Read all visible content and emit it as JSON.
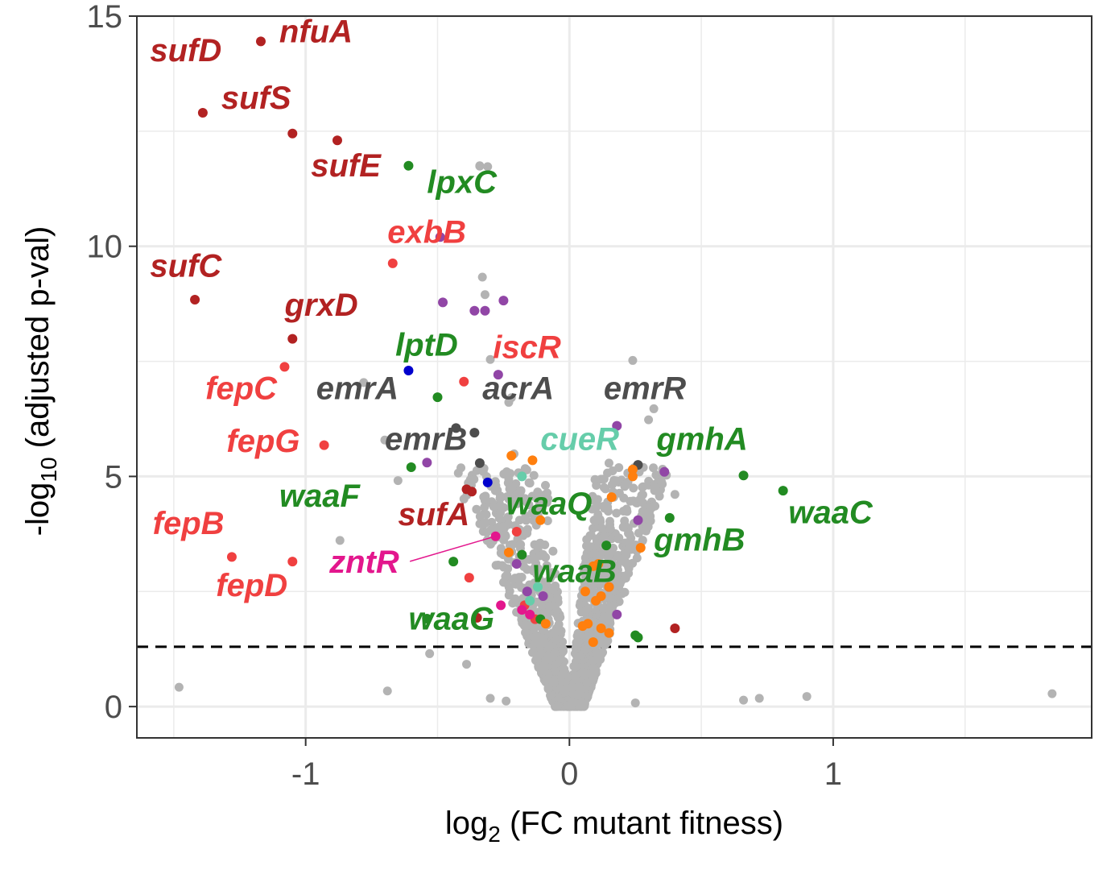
{
  "chart_data": {
    "type": "scatter",
    "title": "",
    "xlabel": {
      "base": "log",
      "sub": "2",
      "rest": " (FC mutant fitness)"
    },
    "ylabel": {
      "prefix": "-log",
      "sub": "10",
      "rest": " (adjusted p-val)"
    },
    "xlim": [
      -1.64,
      1.98
    ],
    "ylim": [
      -0.68,
      15.0
    ],
    "xticks": [
      {
        "value": -1,
        "label": "-1"
      },
      {
        "value": 0,
        "label": "0"
      },
      {
        "value": 1,
        "label": "1"
      }
    ],
    "yticks": [
      {
        "value": 0,
        "label": "0"
      },
      {
        "value": 5,
        "label": "5"
      },
      {
        "value": 10,
        "label": "10"
      },
      {
        "value": 15,
        "label": "15"
      }
    ],
    "grid": true,
    "threshold": {
      "y": 1.3,
      "style": "dashed"
    },
    "colors": {
      "background_gray": "#b3b3b3",
      "dark_red": "#b22222",
      "red": "#f04040",
      "green": "#228b22",
      "purple": "#9146a6",
      "dark_gray": "#4d4d4d",
      "orange": "#ff7f0e",
      "teal": "#66cdaa",
      "blue": "#0000cd",
      "magenta": "#e3178d"
    },
    "background_points": [
      [
        -1.48,
        0.42
      ],
      [
        -0.69,
        0.34
      ],
      [
        -0.24,
        0.12
      ],
      [
        -0.3,
        0.18
      ],
      [
        0.25,
        0.08
      ],
      [
        0.66,
        0.14
      ],
      [
        0.72,
        0.18
      ],
      [
        0.9,
        0.22
      ],
      [
        1.83,
        0.28
      ],
      [
        -0.87,
        3.61
      ],
      [
        -0.65,
        4.91
      ],
      [
        -0.7,
        5.79
      ],
      [
        -0.78,
        7.04
      ],
      [
        -0.31,
        11.73
      ],
      [
        -0.34,
        11.74
      ],
      [
        -0.34,
        11.75
      ],
      [
        -0.33,
        9.33
      ],
      [
        -0.32,
        8.95
      ],
      [
        -0.3,
        7.54
      ],
      [
        -0.23,
        6.61
      ],
      [
        -0.22,
        6.71
      ],
      [
        -0.21,
        5.49
      ],
      [
        -0.23,
        4.51
      ],
      [
        -0.4,
        4.51
      ],
      [
        -0.53,
        1.15
      ],
      [
        -0.39,
        0.92
      ],
      [
        0.24,
        7.52
      ],
      [
        0.3,
        6.23
      ],
      [
        0.32,
        6.47
      ],
      [
        0.4,
        4.61
      ],
      [
        0.15,
        5.29
      ],
      [
        0.12,
        4.94
      ],
      [
        0.28,
        4.42
      ]
    ],
    "series": [
      {
        "name": "",
        "color": "#b22222",
        "points": [
          [
            -1.17,
            14.45
          ],
          [
            -1.39,
            12.9
          ],
          [
            -1.05,
            12.45
          ],
          [
            -0.88,
            12.3
          ],
          [
            -1.42,
            8.84
          ],
          [
            -1.05,
            7.99
          ],
          [
            -0.39,
            4.72
          ],
          [
            -0.37,
            4.67
          ],
          [
            -0.35,
            1.93
          ],
          [
            0.4,
            1.7
          ]
        ]
      },
      {
        "name": "",
        "color": "#f04040",
        "points": [
          [
            -0.67,
            9.63
          ],
          [
            -1.08,
            7.38
          ],
          [
            -0.93,
            5.68
          ],
          [
            -1.28,
            3.25
          ],
          [
            -1.05,
            3.15
          ],
          [
            -0.4,
            7.06
          ],
          [
            -0.38,
            2.8
          ],
          [
            -0.2,
            3.8
          ],
          [
            -0.17,
            2.2
          ],
          [
            -0.13,
            1.9
          ]
        ]
      },
      {
        "name": "",
        "color": "#228b22",
        "points": [
          [
            -0.61,
            11.75
          ],
          [
            -0.5,
            6.72
          ],
          [
            -0.6,
            5.2
          ],
          [
            -0.44,
            3.15
          ],
          [
            -0.18,
            3.3
          ],
          [
            -0.11,
            1.9
          ],
          [
            0.66,
            5.02
          ],
          [
            0.81,
            4.69
          ],
          [
            0.38,
            4.1
          ],
          [
            0.14,
            3.5
          ],
          [
            0.25,
            1.55
          ],
          [
            0.26,
            1.5
          ],
          [
            -0.54,
            1.91
          ]
        ]
      },
      {
        "name": "",
        "color": "#9146a6",
        "points": [
          [
            -0.49,
            10.2
          ],
          [
            -0.48,
            8.78
          ],
          [
            -0.36,
            8.6
          ],
          [
            -0.32,
            8.6
          ],
          [
            -0.25,
            8.82
          ],
          [
            -0.27,
            7.21
          ],
          [
            -0.54,
            5.3
          ],
          [
            0.18,
            6.1
          ],
          [
            0.36,
            5.1
          ],
          [
            0.26,
            4.05
          ],
          [
            -0.2,
            3.1
          ],
          [
            -0.16,
            2.5
          ],
          [
            -0.1,
            2.4
          ],
          [
            0.15,
            2.6
          ],
          [
            0.18,
            2.0
          ]
        ]
      },
      {
        "name": "",
        "color": "#4d4d4d",
        "points": [
          [
            -0.43,
            6.05
          ],
          [
            -0.36,
            5.95
          ],
          [
            -0.34,
            5.29
          ],
          [
            0.26,
            5.25
          ]
        ]
      },
      {
        "name": "",
        "color": "#ff7f0e",
        "points": [
          [
            -0.22,
            5.45
          ],
          [
            -0.14,
            5.35
          ],
          [
            0.24,
            5.15
          ],
          [
            0.24,
            5.0
          ],
          [
            0.16,
            4.55
          ],
          [
            -0.11,
            4.05
          ],
          [
            0.27,
            3.45
          ],
          [
            -0.23,
            3.35
          ],
          [
            0.09,
            3.05
          ],
          [
            0.11,
            3.1
          ],
          [
            0.06,
            2.5
          ],
          [
            0.12,
            2.4
          ],
          [
            0.1,
            2.3
          ],
          [
            0.15,
            2.6
          ],
          [
            0.07,
            1.8
          ],
          [
            0.05,
            1.75
          ],
          [
            0.12,
            1.7
          ],
          [
            0.09,
            1.4
          ],
          [
            -0.09,
            1.8
          ],
          [
            0.15,
            1.6
          ]
        ]
      },
      {
        "name": "",
        "color": "#66cdaa",
        "points": [
          [
            -0.18,
            5.0
          ],
          [
            -0.12,
            2.6
          ],
          [
            -0.15,
            2.3
          ]
        ]
      },
      {
        "name": "",
        "color": "#0000cd",
        "points": [
          [
            -0.61,
            7.3
          ],
          [
            -0.31,
            4.87
          ]
        ]
      },
      {
        "name": "",
        "color": "#e3178d",
        "points": [
          [
            -0.28,
            3.7
          ],
          [
            -0.26,
            2.2
          ],
          [
            -0.18,
            2.1
          ],
          [
            -0.15,
            2.0
          ]
        ]
      }
    ],
    "labels": [
      {
        "text": "nfuA",
        "x": -1.1,
        "y": 14.43,
        "color": "#b22222"
      },
      {
        "text": "sufD",
        "x": -1.59,
        "y": 14.02,
        "color": "#b22222"
      },
      {
        "text": "sufS",
        "x": -1.32,
        "y": 12.99,
        "color": "#b22222"
      },
      {
        "text": "sufE",
        "x": -0.98,
        "y": 11.52,
        "color": "#b22222"
      },
      {
        "text": "lpxC",
        "x": -0.54,
        "y": 11.16,
        "color": "#228b22"
      },
      {
        "text": "exbB",
        "x": -0.69,
        "y": 10.07,
        "color": "#f04040"
      },
      {
        "text": "sufC",
        "x": -1.59,
        "y": 9.34,
        "color": "#b22222"
      },
      {
        "text": "grxD",
        "x": -1.08,
        "y": 8.49,
        "color": "#b22222"
      },
      {
        "text": "lptD",
        "x": -0.66,
        "y": 7.62,
        "color": "#228b22"
      },
      {
        "text": "iscR",
        "x": -0.29,
        "y": 7.57,
        "color": "#f04040"
      },
      {
        "text": "fepC",
        "x": -1.38,
        "y": 6.68,
        "color": "#f04040"
      },
      {
        "text": "emrA",
        "x": -0.96,
        "y": 6.68,
        "color": "#4d4d4d"
      },
      {
        "text": "acrA",
        "x": -0.33,
        "y": 6.68,
        "color": "#4d4d4d"
      },
      {
        "text": "emrR",
        "x": 0.13,
        "y": 6.68,
        "color": "#4d4d4d"
      },
      {
        "text": "fepG",
        "x": -1.3,
        "y": 5.53,
        "color": "#f04040"
      },
      {
        "text": "emrB",
        "x": -0.7,
        "y": 5.58,
        "color": "#4d4d4d"
      },
      {
        "text": "cueR",
        "x": -0.11,
        "y": 5.58,
        "color": "#66cdaa"
      },
      {
        "text": "gmhA",
        "x": 0.33,
        "y": 5.58,
        "color": "#228b22"
      },
      {
        "text": "waaF",
        "x": -1.1,
        "y": 4.34,
        "color": "#228b22"
      },
      {
        "text": "waaQ",
        "x": -0.24,
        "y": 4.18,
        "color": "#228b22"
      },
      {
        "text": "fepB",
        "x": -1.58,
        "y": 3.75,
        "color": "#f04040"
      },
      {
        "text": "sufA",
        "x": -0.65,
        "y": 3.94,
        "color": "#b22222"
      },
      {
        "text": "waaC",
        "x": 0.83,
        "y": 3.98,
        "color": "#228b22"
      },
      {
        "text": "gmhB",
        "x": 0.32,
        "y": 3.39,
        "color": "#228b22"
      },
      {
        "text": "zntR",
        "x": -0.91,
        "y": 2.91,
        "color": "#e3178d",
        "leader_to": [
          -0.28,
          3.7
        ]
      },
      {
        "text": "fepD",
        "x": -1.34,
        "y": 2.4,
        "color": "#f04040"
      },
      {
        "text": "waaB",
        "x": -0.14,
        "y": 2.71,
        "color": "#228b22"
      },
      {
        "text": "waaG",
        "x": -0.61,
        "y": 1.67,
        "color": "#228b22"
      }
    ]
  }
}
